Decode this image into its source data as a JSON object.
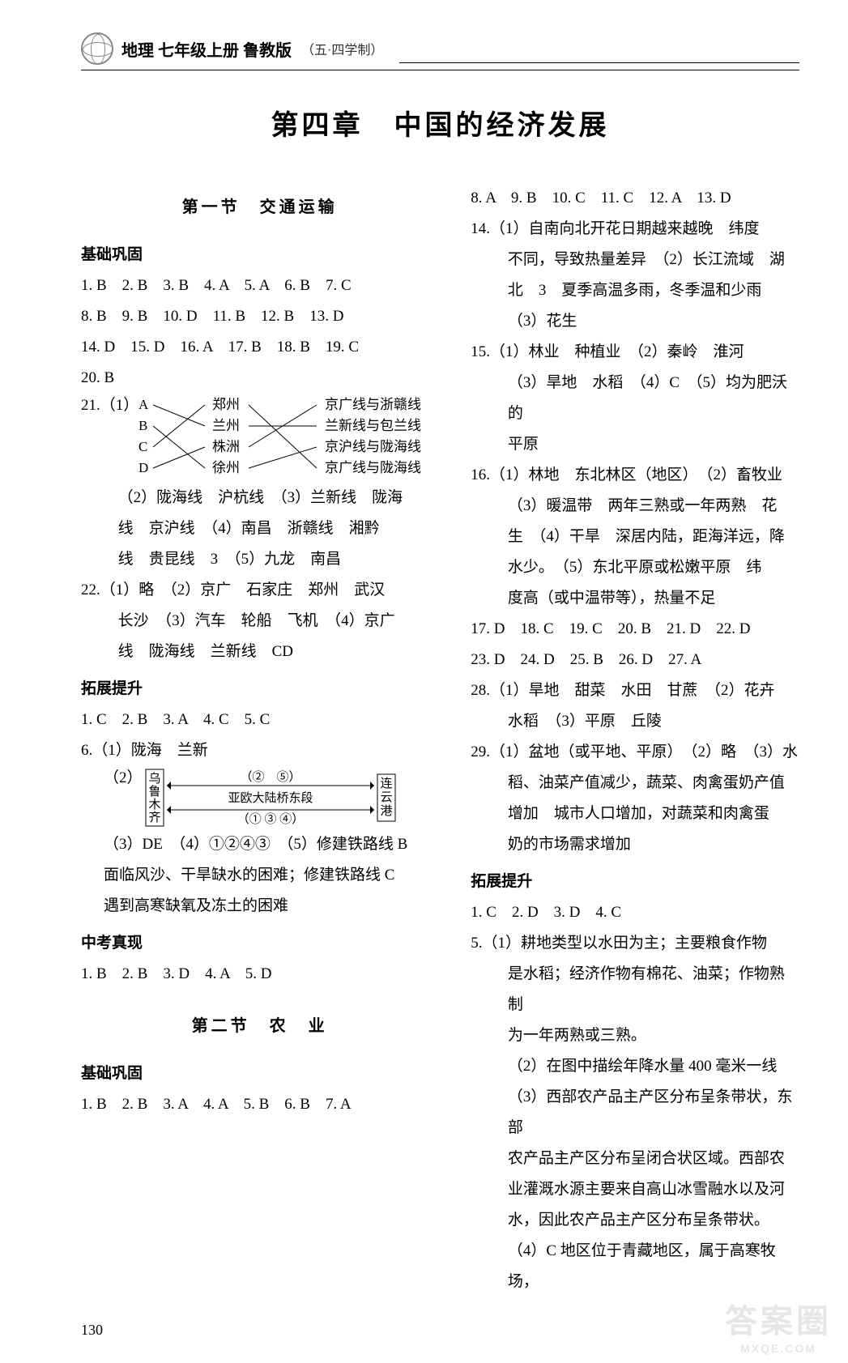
{
  "header": {
    "title": "地理 七年级上册 鲁教版",
    "sub": "（五·四学制）"
  },
  "chapter": "第四章　中国的经济发展",
  "left": {
    "section1_title": "第一节　交通运输",
    "sub_jichu": "基础巩固",
    "jichu_lines": [
      "1. B　2. B　3. B　4. A　5. A　6. B　7. C",
      "8. B　9. B　10. D　11. B　12. B　13. D",
      "14. D　15. D　16. A　17. B　18. B　19. C",
      "20. B"
    ],
    "q21_prefix": "21.（1）",
    "q21_diagram": {
      "left_labels": [
        "A",
        "B",
        "C",
        "D"
      ],
      "mid_labels": [
        "郑州",
        "兰州",
        "株洲",
        "徐州"
      ],
      "right_labels": [
        "京广线与浙赣线",
        "兰新线与包兰线",
        "京沪线与陇海线",
        "京广线与陇海线"
      ],
      "left_to_mid": [
        [
          0,
          1
        ],
        [
          1,
          3
        ],
        [
          2,
          0
        ],
        [
          3,
          2
        ]
      ],
      "mid_to_right": [
        [
          0,
          3
        ],
        [
          1,
          1
        ],
        [
          2,
          0
        ],
        [
          3,
          2
        ]
      ],
      "stroke": "#000000",
      "font_size": 17
    },
    "q21_rest": [
      "（2）陇海线　沪杭线　（3）兰新线　陇海",
      "线　京沪线　（4）南昌　浙赣线　湘黔",
      "线　贵昆线　3　（5）九龙　南昌"
    ],
    "q22": [
      "22.（1）略　（2）京广　石家庄　郑州　武汉",
      "长沙　（3）汽车　轮船　飞机　（4）京广",
      "线　陇海线　兰新线　CD"
    ],
    "sub_tuozhan": "拓展提升",
    "tuozhan_lines": [
      "1. C　2. B　3. A　4. C　5. C"
    ],
    "q6_line": "6.（1）陇海　兰新",
    "q6_2_prefix": "（2）",
    "q6_diagram": {
      "left_box": "乌鲁木齐",
      "right_box": "连云港",
      "top": "（②　⑤）",
      "mid": "亚欧大陆桥东段",
      "bottom": "（① ③ ④）",
      "stroke": "#000000",
      "font_size": 15
    },
    "q6_rest": [
      "（3）DE　（4）①②④③　（5）修建铁路线 B",
      "面临风沙、干旱缺水的困难；修建铁路线 C",
      "遇到高寒缺氧及冻土的困难"
    ],
    "sub_zhongkao": "中考真现",
    "zhongkao_lines": [
      "1. B　2. B　3. D　4. A　5. D"
    ],
    "section2_title": "第二节　农　业",
    "sub_jichu2": "基础巩固",
    "jichu2_lines": [
      "1. B　2. B　3. A　4. A　5. B　6. B　7. A"
    ]
  },
  "right": {
    "lines1": [
      "8. A　9. B　10. C　11. C　12. A　13. D"
    ],
    "q14": [
      "14.（1）自南向北开花日期越来越晚　纬度",
      "不同，导致热量差异　（2）长江流域　湖",
      "北　3　夏季高温多雨，冬季温和少雨",
      "（3）花生"
    ],
    "q15": [
      "15.（1）林业　种植业　（2）秦岭　淮河",
      "（3）旱地　水稻　（4）C　（5）均为肥沃的",
      "平原"
    ],
    "q16": [
      "16.（1）林地　东北林区（地区）　（2）畜牧业",
      "（3）暖温带　两年三熟或一年两熟　花",
      "生　（4）干旱　深居内陆，距海洋远，降",
      "水少。　（5）东北平原或松嫩平原　纬",
      "度高（或中温带等），热量不足"
    ],
    "lines2": [
      "17. D　18. C　19. C　20. B　21. D　22. D",
      "23. D　24. D　25. B　26. D　27. A"
    ],
    "q28": [
      "28.（1）旱地　甜菜　水田　甘蔗　（2）花卉",
      "水稻　（3）平原　丘陵"
    ],
    "q29": [
      "29.（1）盆地（或平地、平原）　（2）略　（3）水",
      "稻、油菜产值减少，蔬菜、肉禽蛋奶产值",
      "增加　城市人口增加，对蔬菜和肉禽蛋",
      "奶的市场需求增加"
    ],
    "sub_tuozhan": "拓展提升",
    "tuozhan_lines": [
      "1. C　2. D　3. D　4. C"
    ],
    "q5": [
      "5.（1）耕地类型以水田为主；主要粮食作物",
      "是水稻；经济作物有棉花、油菜；作物熟制",
      "为一年两熟或三熟。",
      "（2）在图中描绘年降水量 400 毫米一线",
      "（3）西部农产品主产区分布呈条带状，东部",
      "农产品主产区分布呈闭合状区域。西部农",
      "业灌溉水源主要来自高山冰雪融水以及河",
      "水，因此农产品主产区分布呈条带状。",
      "（4）C 地区位于青藏地区，属于高寒牧场，"
    ]
  },
  "pagenum": "130",
  "watermark": {
    "main": "答案圈",
    "sub": "MXQE.COM"
  }
}
